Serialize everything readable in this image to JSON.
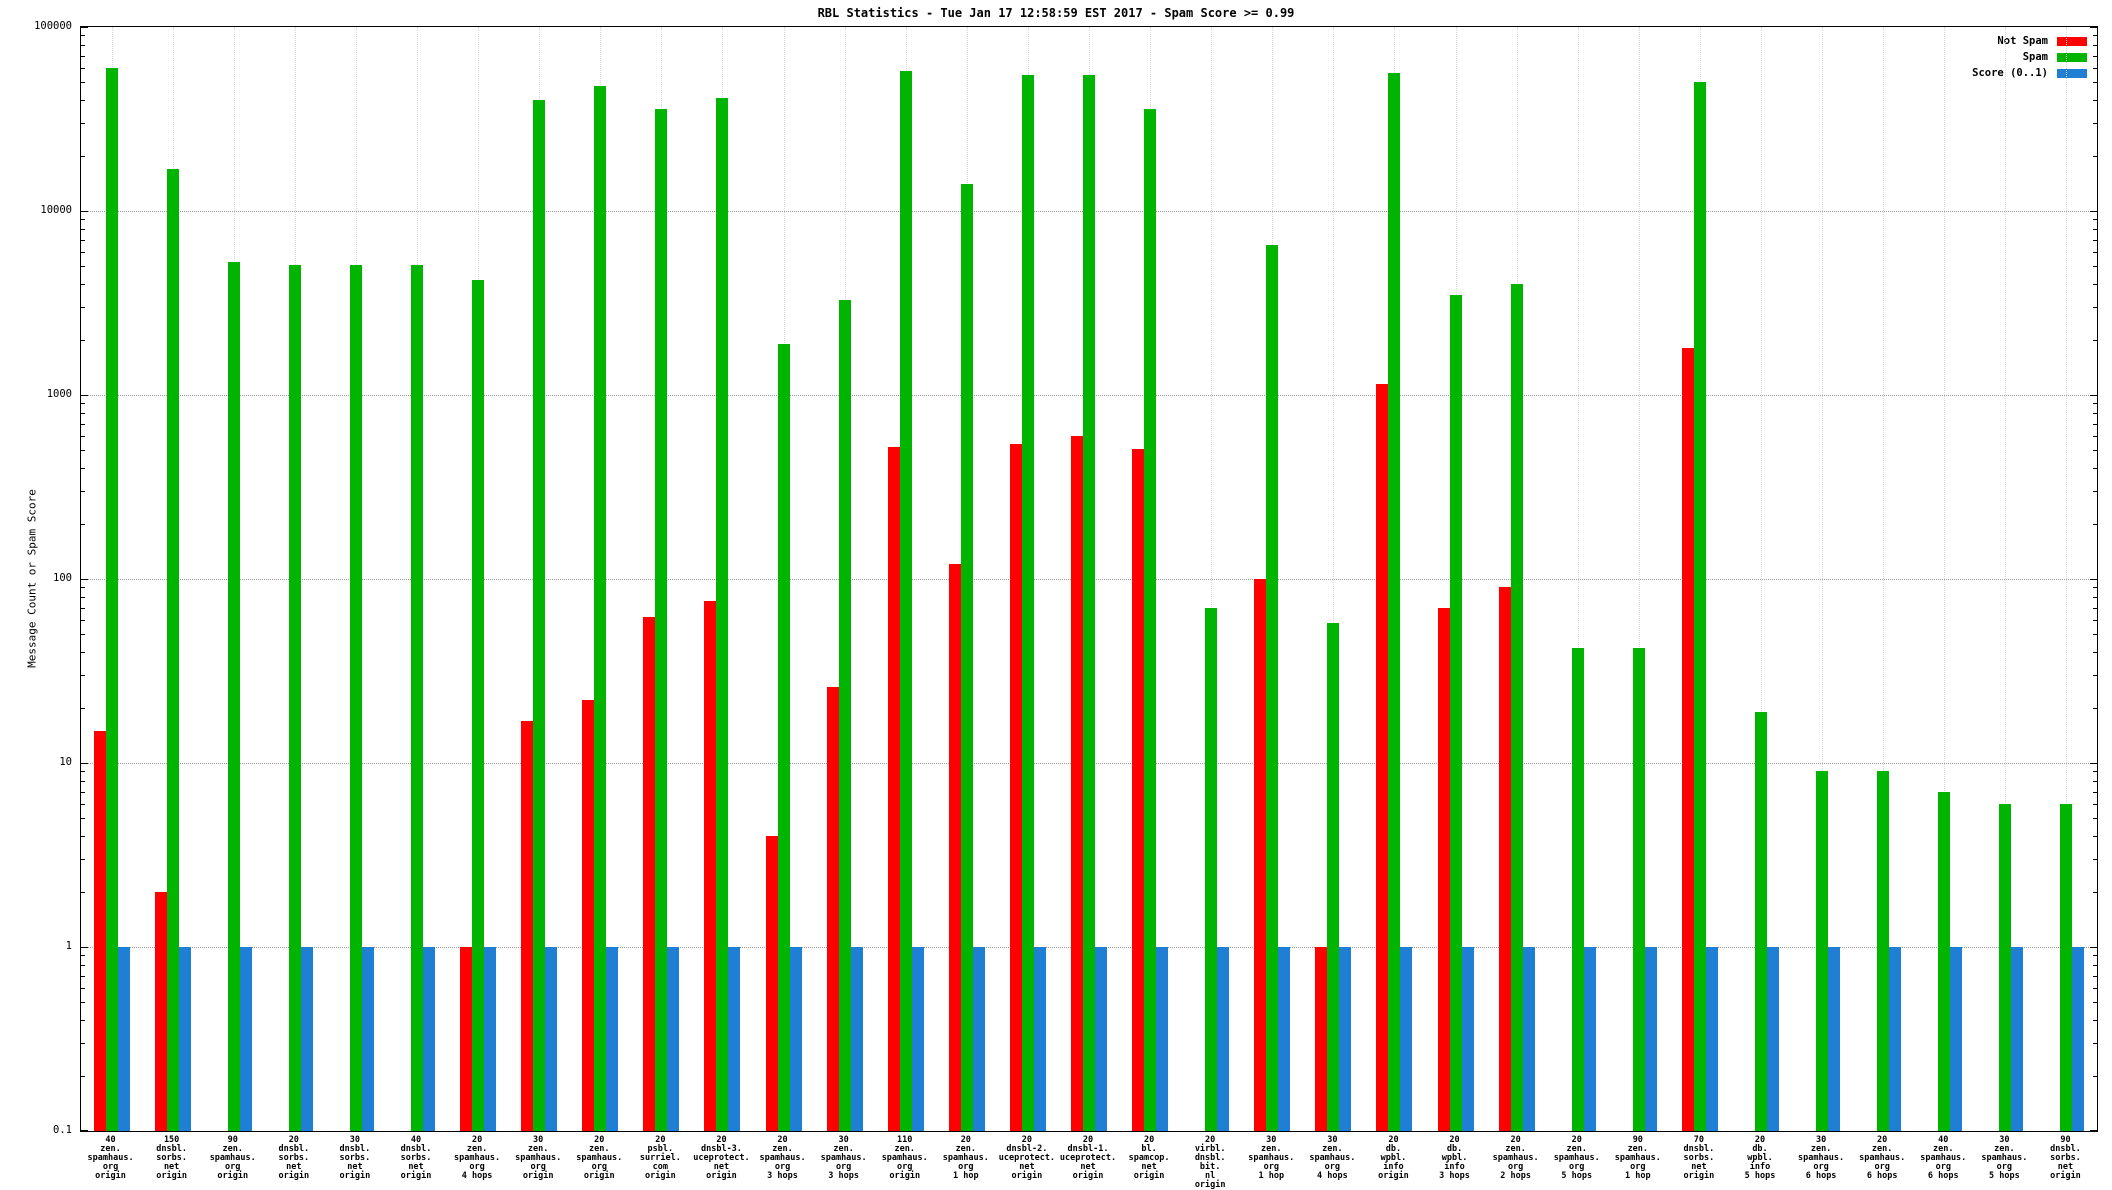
{
  "chart_data": {
    "type": "bar",
    "title": "RBL Statistics - Tue Jan 17 12:58:59 EST 2017 - Spam Score >= 0.99",
    "xlabel": "",
    "ylabel": "Message Count or Spam Score",
    "yscale": "log",
    "ylim": [
      0.1,
      100000
    ],
    "yticks": [
      0.1,
      1,
      10,
      100,
      1000,
      10000,
      100000
    ],
    "grid": true,
    "legend_position": "top-right",
    "background_color": "#ffffff",
    "categories": [
      [
        "40",
        "zen.",
        "spamhaus.",
        "org",
        "origin"
      ],
      [
        "150",
        "dnsbl.",
        "sorbs.",
        "net",
        "origin"
      ],
      [
        "90",
        "zen.",
        "spamhaus.",
        "org",
        "origin"
      ],
      [
        "20",
        "dnsbl.",
        "sorbs.",
        "net",
        "origin"
      ],
      [
        "30",
        "dnsbl.",
        "sorbs.",
        "net",
        "origin"
      ],
      [
        "40",
        "dnsbl.",
        "sorbs.",
        "net",
        "origin"
      ],
      [
        "20",
        "zen.",
        "spamhaus.",
        "org",
        "4 hops"
      ],
      [
        "30",
        "zen.",
        "spamhaus.",
        "org",
        "origin"
      ],
      [
        "20",
        "zen.",
        "spamhaus.",
        "org",
        "origin"
      ],
      [
        "20",
        "psbl.",
        "surriel.",
        "com",
        "origin"
      ],
      [
        "20",
        "dnsbl-3.",
        "uceprotect.",
        "net",
        "origin"
      ],
      [
        "20",
        "zen.",
        "spamhaus.",
        "org",
        "3 hops"
      ],
      [
        "30",
        "zen.",
        "spamhaus.",
        "org",
        "3 hops"
      ],
      [
        "110",
        "zen.",
        "spamhaus.",
        "org",
        "origin"
      ],
      [
        "20",
        "zen.",
        "spamhaus.",
        "org",
        "1 hop"
      ],
      [
        "20",
        "dnsbl-2.",
        "uceprotect.",
        "net",
        "origin"
      ],
      [
        "20",
        "dnsbl-1.",
        "uceprotect.",
        "net",
        "origin"
      ],
      [
        "20",
        "bl.",
        "spamcop.",
        "net",
        "origin"
      ],
      [
        "20",
        "virbl.",
        "dnsbl.",
        "bit.",
        "nl",
        "origin"
      ],
      [
        "30",
        "zen.",
        "spamhaus.",
        "org",
        "1 hop"
      ],
      [
        "30",
        "zen.",
        "spamhaus.",
        "org",
        "4 hops"
      ],
      [
        "20",
        "db.",
        "wpbl.",
        "info",
        "origin"
      ],
      [
        "20",
        "db.",
        "wpbl.",
        "info",
        "3 hops"
      ],
      [
        "20",
        "zen.",
        "spamhaus.",
        "org",
        "2 hops"
      ],
      [
        "20",
        "zen.",
        "spamhaus.",
        "org",
        "5 hops"
      ],
      [
        "90",
        "zen.",
        "spamhaus.",
        "org",
        "1 hop"
      ],
      [
        "70",
        "dnsbl.",
        "sorbs.",
        "net",
        "origin"
      ],
      [
        "20",
        "db.",
        "wpbl.",
        "info",
        "5 hops"
      ],
      [
        "30",
        "zen.",
        "spamhaus.",
        "org",
        "6 hops"
      ],
      [
        "20",
        "zen.",
        "spamhaus.",
        "org",
        "6 hops"
      ],
      [
        "40",
        "zen.",
        "spamhaus.",
        "org",
        "6 hops"
      ],
      [
        "30",
        "zen.",
        "spamhaus.",
        "org",
        "5 hops"
      ],
      [
        "90",
        "dnsbl.",
        "sorbs.",
        "net",
        "origin"
      ]
    ],
    "series": [
      {
        "name": "Not Spam",
        "color": "#ff0000",
        "values": [
          15,
          2,
          0,
          0,
          0,
          0,
          1,
          17,
          22,
          62,
          76,
          4,
          26,
          520,
          120,
          540,
          600,
          510,
          0,
          100,
          1,
          1150,
          70,
          90,
          0,
          0,
          1800,
          0,
          0,
          0,
          0,
          0,
          0
        ]
      },
      {
        "name": "Spam",
        "color": "#00b400",
        "values": [
          60000,
          17000,
          5300,
          5100,
          5100,
          5100,
          4200,
          40000,
          48000,
          36000,
          41000,
          1900,
          3300,
          58000,
          14000,
          55000,
          55000,
          36000,
          70,
          6500,
          58,
          56000,
          3500,
          4000,
          42,
          42,
          50000,
          19,
          9,
          9,
          7,
          6,
          6
        ]
      },
      {
        "name": "Score (0..1)",
        "color": "#1f7fd4",
        "values": [
          1,
          1,
          1,
          1,
          1,
          1,
          1,
          1,
          1,
          1,
          1,
          1,
          1,
          1,
          1,
          1,
          1,
          1,
          1,
          1,
          1,
          1,
          1,
          1,
          1,
          1,
          1,
          1,
          1,
          1,
          1,
          1,
          1
        ]
      }
    ]
  }
}
